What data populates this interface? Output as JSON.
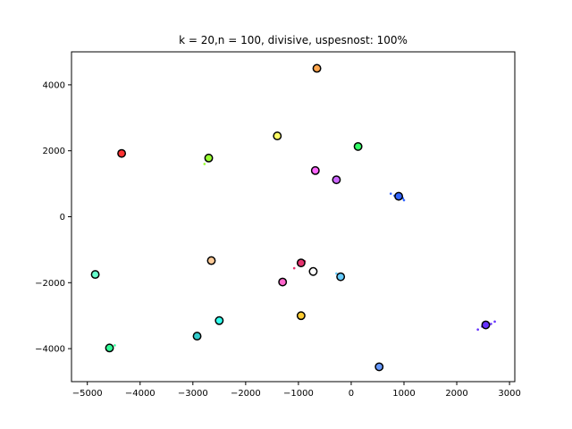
{
  "chart_data": {
    "type": "scatter",
    "title": "k = 20,n = 100, divisive, uspesnost: 100%",
    "xlabel": "",
    "ylabel": "",
    "xlim": [
      -5300,
      3100
    ],
    "ylim": [
      -5000,
      5000
    ],
    "xticks": [
      -5000,
      -4000,
      -3000,
      -2000,
      -1000,
      0,
      1000,
      2000,
      3000
    ],
    "xtick_labels": [
      "−5000",
      "−4000",
      "−3000",
      "−2000",
      "−1000",
      "0",
      "1000",
      "2000",
      "3000"
    ],
    "yticks": [
      -4000,
      -2000,
      0,
      2000,
      4000
    ],
    "ytick_labels": [
      "−4000",
      "−2000",
      "0",
      "2000",
      "4000"
    ],
    "grid": false,
    "legend": "none",
    "centroid_edge_color": "#000000",
    "clusters": [
      {
        "color": "#ffa64d",
        "center": [
          -650,
          4500
        ],
        "points": [
          [
            -650,
            4500
          ],
          [
            -660,
            4510
          ],
          [
            -640,
            4490
          ],
          [
            -655,
            4495
          ],
          [
            -645,
            4505
          ]
        ]
      },
      {
        "color": "#ff3333",
        "center": [
          -4350,
          1920
        ],
        "points": [
          [
            -4350,
            1920
          ],
          [
            -4360,
            1930
          ],
          [
            -4340,
            1910
          ],
          [
            -4355,
            1915
          ],
          [
            -4345,
            1925
          ]
        ]
      },
      {
        "color": "#99ff33",
        "center": [
          -2700,
          1780
        ],
        "points": [
          [
            -2700,
            1780
          ],
          [
            -2780,
            1600
          ],
          [
            -2720,
            1720
          ],
          [
            -2690,
            1790
          ],
          [
            -2710,
            1770
          ]
        ]
      },
      {
        "color": "#ffff66",
        "center": [
          -1400,
          2450
        ],
        "points": [
          [
            -1400,
            2450
          ],
          [
            -1410,
            2460
          ],
          [
            -1390,
            2440
          ],
          [
            -1405,
            2445
          ],
          [
            -1395,
            2455
          ]
        ]
      },
      {
        "color": "#33ff66",
        "center": [
          130,
          2130
        ],
        "points": [
          [
            130,
            2130
          ],
          [
            120,
            2140
          ],
          [
            140,
            2120
          ],
          [
            125,
            2125
          ],
          [
            135,
            2135
          ]
        ]
      },
      {
        "color": "#ff66ff",
        "center": [
          -680,
          1400
        ],
        "points": [
          [
            -680,
            1400
          ],
          [
            -690,
            1410
          ],
          [
            -670,
            1390
          ],
          [
            -685,
            1395
          ],
          [
            -675,
            1405
          ]
        ]
      },
      {
        "color": "#cc66ff",
        "center": [
          -280,
          1120
        ],
        "points": [
          [
            -280,
            1120
          ],
          [
            -300,
            1080
          ],
          [
            -260,
            1140
          ],
          [
            -285,
            1115
          ],
          [
            -275,
            1125
          ]
        ]
      },
      {
        "color": "#3366ff",
        "center": [
          900,
          620
        ],
        "points": [
          [
            900,
            620
          ],
          [
            750,
            700
          ],
          [
            820,
            640
          ],
          [
            980,
            560
          ],
          [
            1000,
            500
          ]
        ]
      },
      {
        "color": "#ffcc99",
        "center": [
          -2650,
          -1330
        ],
        "points": [
          [
            -2650,
            -1330
          ],
          [
            -2660,
            -1320
          ],
          [
            -2640,
            -1340
          ],
          [
            -2655,
            -1335
          ],
          [
            -2645,
            -1325
          ]
        ]
      },
      {
        "color": "#66ffcc",
        "center": [
          -4850,
          -1750
        ],
        "points": [
          [
            -4850,
            -1750
          ],
          [
            -4860,
            -1740
          ],
          [
            -4840,
            -1760
          ],
          [
            -4855,
            -1755
          ],
          [
            -4845,
            -1745
          ]
        ]
      },
      {
        "color": "#e6336f",
        "center": [
          -950,
          -1400
        ],
        "points": [
          [
            -950,
            -1400
          ],
          [
            -1080,
            -1560
          ],
          [
            -980,
            -1450
          ],
          [
            -880,
            -1350
          ],
          [
            -920,
            -1380
          ]
        ]
      },
      {
        "color": "#ff66cc",
        "center": [
          -1300,
          -1980
        ],
        "points": [
          [
            -1300,
            -1980
          ],
          [
            -1310,
            -1970
          ],
          [
            -1290,
            -1990
          ],
          [
            -1305,
            -1985
          ],
          [
            -1295,
            -1975
          ]
        ]
      },
      {
        "color": "#ffffff",
        "center": [
          -720,
          -1660
        ],
        "points": [
          [
            -720,
            -1660
          ],
          [
            -730,
            -1650
          ],
          [
            -710,
            -1670
          ],
          [
            -725,
            -1665
          ],
          [
            -715,
            -1655
          ]
        ]
      },
      {
        "color": "#66ccff",
        "center": [
          -200,
          -1820
        ],
        "points": [
          [
            -200,
            -1820
          ],
          [
            -280,
            -1720
          ],
          [
            -220,
            -1800
          ],
          [
            -190,
            -1830
          ],
          [
            -210,
            -1810
          ]
        ]
      },
      {
        "color": "#ffcc33",
        "center": [
          -950,
          -3000
        ],
        "points": [
          [
            -950,
            -3000
          ],
          [
            -960,
            -2990
          ],
          [
            -940,
            -3010
          ],
          [
            -955,
            -3005
          ],
          [
            -945,
            -2995
          ]
        ]
      },
      {
        "color": "#33ff99",
        "center": [
          -4580,
          -3980
        ],
        "points": [
          [
            -4580,
            -3980
          ],
          [
            -4480,
            -3900
          ],
          [
            -4560,
            -3960
          ],
          [
            -4600,
            -4000
          ],
          [
            -4570,
            -3970
          ]
        ]
      },
      {
        "color": "#33cccc",
        "center": [
          -2920,
          -3620
        ],
        "points": [
          [
            -2920,
            -3620
          ],
          [
            -2930,
            -3610
          ],
          [
            -2910,
            -3630
          ],
          [
            -2925,
            -3625
          ],
          [
            -2915,
            -3615
          ]
        ]
      },
      {
        "color": "#33ffee",
        "center": [
          -2500,
          -3150
        ],
        "points": [
          [
            -2500,
            -3150
          ],
          [
            -2510,
            -3140
          ],
          [
            -2490,
            -3160
          ],
          [
            -2505,
            -3155
          ],
          [
            -2495,
            -3145
          ]
        ]
      },
      {
        "color": "#6633ff",
        "center": [
          2550,
          -3280
        ],
        "points": [
          [
            2550,
            -3280
          ],
          [
            2400,
            -3420
          ],
          [
            2480,
            -3330
          ],
          [
            2650,
            -3250
          ],
          [
            2720,
            -3180
          ]
        ]
      },
      {
        "color": "#6699ff",
        "center": [
          530,
          -4550
        ],
        "points": [
          [
            530,
            -4550
          ],
          [
            520,
            -4540
          ],
          [
            540,
            -4560
          ],
          [
            525,
            -4555
          ],
          [
            535,
            -4545
          ]
        ]
      }
    ]
  }
}
